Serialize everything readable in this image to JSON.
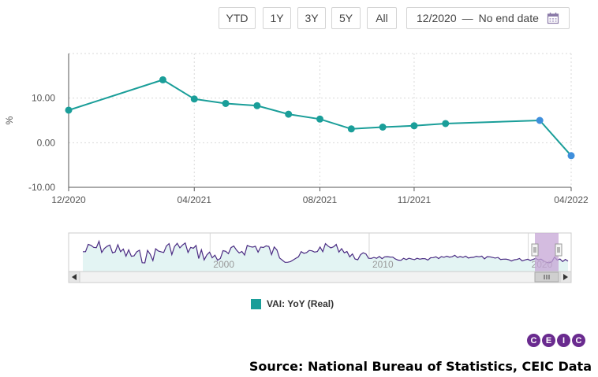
{
  "toolbar": {
    "ranges": [
      "YTD",
      "1Y",
      "3Y",
      "5Y",
      "All"
    ],
    "date_start": "12/2020",
    "date_sep": "—",
    "date_end": "No end date",
    "calendar_icon": "calendar-icon"
  },
  "chart_data": {
    "type": "line",
    "ylabel": "%",
    "ylim": [
      -10,
      20
    ],
    "y_ticks": [
      10,
      0,
      -10
    ],
    "y_tick_labels": [
      "10.00",
      "0.00",
      "-10.00"
    ],
    "x_tick_labels": [
      "12/2020",
      "04/2021",
      "08/2021",
      "11/2021",
      "04/2022"
    ],
    "grid": true,
    "legend_position": "bottom",
    "series": [
      {
        "name": "VAI: YoY (Real)",
        "color": "#1a9e99",
        "points": [
          {
            "x": "2020-12",
            "y": 7.3
          },
          {
            "x": "2021-03",
            "y": 14.1
          },
          {
            "x": "2021-04",
            "y": 9.8
          },
          {
            "x": "2021-05",
            "y": 8.8
          },
          {
            "x": "2021-06",
            "y": 8.3
          },
          {
            "x": "2021-07",
            "y": 6.4
          },
          {
            "x": "2021-08",
            "y": 5.3
          },
          {
            "x": "2021-09",
            "y": 3.1
          },
          {
            "x": "2021-10",
            "y": 3.5
          },
          {
            "x": "2021-11",
            "y": 3.8
          },
          {
            "x": "2021-12",
            "y": 4.3
          },
          {
            "x": "2022-03",
            "y": 5.0
          },
          {
            "x": "2022-04",
            "y": -2.9
          }
        ],
        "highlighted": [
          "2022-03",
          "2022-04"
        ],
        "highlight_color": "#3f8fdc"
      }
    ]
  },
  "navigator": {
    "year_labels": [
      "2000",
      "2010",
      "2020"
    ],
    "line_color": "#4b2c83",
    "window_color": "#c6a6d6",
    "scroll_left_icon": "arrow-left-icon",
    "scroll_right_icon": "arrow-right-icon",
    "scroll_grip_icon": "grip-icon"
  },
  "legend": {
    "label": "VAI: YoY (Real)",
    "color": "#1a9e99"
  },
  "logo": {
    "letters": [
      "C",
      "E",
      "I",
      "C"
    ],
    "color": "#6a2b8f"
  },
  "source": "Source: National Bureau of Statistics, CEIC Data"
}
